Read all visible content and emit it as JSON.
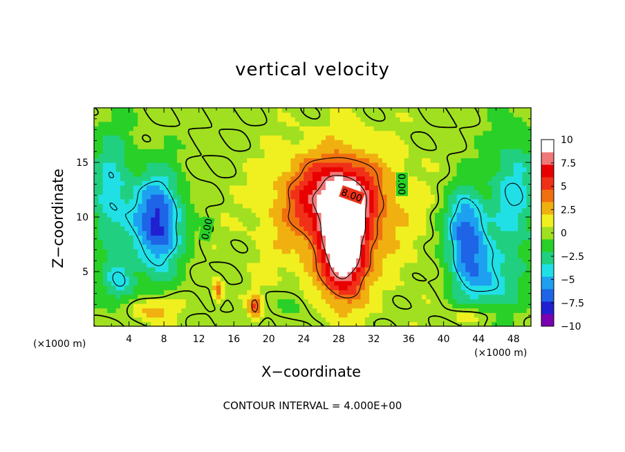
{
  "chart_data": {
    "type": "heatmap",
    "title": "vertical velocity",
    "xlabel": "X−coordinate",
    "ylabel": "Z−coordinate",
    "x_unit_left": "(×1000 m)",
    "x_unit_right": "(×1000 m)",
    "footer": "CONTOUR INTERVAL = 4.000E+00",
    "xlim": [
      0,
      50
    ],
    "ylim": [
      0,
      20
    ],
    "xticks": [
      "4",
      "8",
      "12",
      "16",
      "20",
      "24",
      "28",
      "32",
      "36",
      "40",
      "44",
      "48"
    ],
    "xtick_values": [
      4,
      8,
      12,
      16,
      20,
      24,
      28,
      32,
      36,
      40,
      44,
      48
    ],
    "yticks": [
      "5",
      "10",
      "15"
    ],
    "ytick_values": [
      5,
      10,
      15
    ],
    "colorbar": {
      "range": [
        -10,
        10
      ],
      "tick_labels": [
        "10",
        "7.5",
        "5",
        "2.5",
        "0",
        "−2.5",
        "−5",
        "−7.5",
        "−10"
      ],
      "tick_values": [
        10,
        7.5,
        5,
        2.5,
        0,
        -2.5,
        -5,
        -7.5,
        -10
      ],
      "colors": [
        "#7a00b0",
        "#2020d0",
        "#1e64e6",
        "#1ea0f0",
        "#20e0e6",
        "#20d080",
        "#28d028",
        "#a0e020",
        "#f0f020",
        "#f0b010",
        "#f07010",
        "#f03018",
        "#e80000",
        "#f07878",
        "#ffffff"
      ]
    },
    "contour_labels": [
      "0.00",
      "0.00",
      "8.00"
    ],
    "features": [
      {
        "kind": "updraft core",
        "x": 28.5,
        "z": 8,
        "value": 10
      },
      {
        "kind": "downdraft",
        "x": 7.5,
        "z": 9.5,
        "value": -7
      },
      {
        "kind": "downdraft",
        "x": 42.5,
        "z": 8.5,
        "value": -6.5
      }
    ]
  }
}
